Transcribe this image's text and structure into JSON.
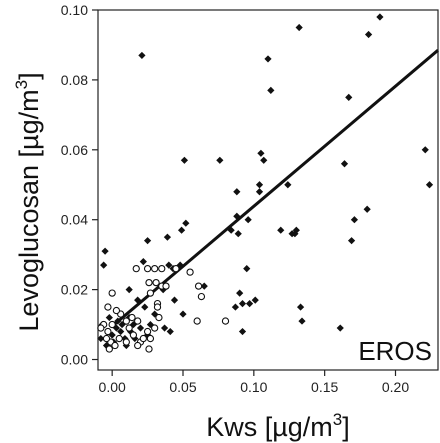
{
  "chart_data": {
    "type": "scatter",
    "title": "",
    "xlabel": "Kws [µg/m³]",
    "ylabel": "Levoglucosan [µg/m³]",
    "xlabel_parts": {
      "base": "Kws [µg/m",
      "sup": "3",
      "end": "]"
    },
    "ylabel_parts": {
      "base": "Levoglucosan [µg/m",
      "sup": "3",
      "end": "]"
    },
    "panel_label": "EROS",
    "xlim": [
      -0.01,
      0.23
    ],
    "ylim": [
      -0.003,
      0.1
    ],
    "x_ticks": [
      0.0,
      0.05,
      0.1,
      0.15,
      0.2
    ],
    "x_tick_labels": [
      "0.00",
      "0.05",
      "0.10",
      "0.15",
      "0.20"
    ],
    "y_ticks": [
      0.0,
      0.02,
      0.04,
      0.06,
      0.08,
      0.1
    ],
    "y_tick_labels": [
      "0.00",
      "0.02",
      "0.04",
      "0.06",
      "0.08",
      "0.10"
    ],
    "grid": false,
    "legend": "none",
    "colors": {
      "filled_marker": "#111111",
      "open_marker": "#111111",
      "fit_line": "#111111"
    },
    "series": [
      {
        "marker": "filled-diamond",
        "points": [
          [
            0.021,
            0.087
          ],
          [
            0.132,
            0.095
          ],
          [
            0.189,
            0.098
          ],
          [
            0.181,
            0.093
          ],
          [
            0.11,
            0.086
          ],
          [
            0.112,
            0.077
          ],
          [
            0.167,
            0.075
          ],
          [
            0.221,
            0.06
          ],
          [
            0.224,
            0.05
          ],
          [
            0.164,
            0.056
          ],
          [
            0.105,
            0.059
          ],
          [
            0.107,
            0.057
          ],
          [
            0.076,
            0.057
          ],
          [
            0.051,
            0.057
          ],
          [
            0.104,
            0.05
          ],
          [
            0.104,
            0.048
          ],
          [
            0.088,
            0.048
          ],
          [
            0.124,
            0.05
          ],
          [
            0.096,
            0.04
          ],
          [
            0.088,
            0.041
          ],
          [
            0.084,
            0.037
          ],
          [
            0.089,
            0.036
          ],
          [
            0.119,
            0.037
          ],
          [
            0.127,
            0.036
          ],
          [
            0.129,
            0.036
          ],
          [
            0.13,
            0.037
          ],
          [
            0.052,
            0.039
          ],
          [
            0.049,
            0.037
          ],
          [
            0.039,
            0.035
          ],
          [
            0.171,
            0.04
          ],
          [
            0.18,
            0.043
          ],
          [
            0.169,
            0.034
          ],
          [
            0.095,
            0.026
          ],
          [
            0.065,
            0.021
          ],
          [
            0.09,
            0.019
          ],
          [
            0.092,
            0.016
          ],
          [
            0.097,
            0.016
          ],
          [
            0.101,
            0.017
          ],
          [
            0.087,
            0.015
          ],
          [
            0.092,
            0.008
          ],
          [
            0.133,
            0.015
          ],
          [
            0.134,
            0.011
          ],
          [
            0.161,
            0.009
          ],
          [
            0.025,
            0.034
          ],
          [
            0.022,
            0.028
          ],
          [
            0.043,
            0.026
          ],
          [
            0.048,
            0.027
          ],
          [
            0.04,
            0.027
          ],
          [
            0.036,
            0.02
          ],
          [
            0.044,
            0.017
          ],
          [
            0.037,
            0.009
          ],
          [
            0.041,
            0.008
          ],
          [
            0.05,
            0.013
          ],
          [
            -0.005,
            0.031
          ],
          [
            -0.006,
            0.027
          ],
          [
            0.018,
            0.017
          ],
          [
            0.012,
            0.02
          ],
          [
            0.023,
            0.015
          ],
          [
            0.018,
            0.011
          ],
          [
            0.03,
            0.013
          ],
          [
            0.0,
            0.007
          ],
          [
            0.004,
            0.011
          ],
          [
            0.006,
            0.008
          ],
          [
            0.009,
            0.006
          ],
          [
            0.013,
            0.008
          ],
          [
            0.016,
            0.006
          ],
          [
            0.02,
            0.009
          ],
          [
            0.001,
            0.005
          ],
          [
            -0.004,
            0.004
          ],
          [
            0.003,
            0.009
          ],
          [
            -0.008,
            0.006
          ],
          [
            -0.007,
            0.01
          ],
          [
            0.01,
            0.004
          ],
          [
            0.027,
            0.01
          ],
          [
            0.025,
            0.007
          ],
          [
            0.033,
            0.012
          ],
          [
            0.012,
            0.012
          ],
          [
            0.007,
            0.01
          ],
          [
            -0.002,
            0.012
          ],
          [
            0.015,
            0.01
          ]
        ]
      },
      {
        "marker": "open-circle",
        "points": [
          [
            -0.003,
            0.015
          ],
          [
            0.0,
            0.019
          ],
          [
            0.017,
            0.026
          ],
          [
            0.025,
            0.026
          ],
          [
            0.03,
            0.026
          ],
          [
            0.035,
            0.026
          ],
          [
            0.045,
            0.026
          ],
          [
            0.055,
            0.025
          ],
          [
            0.026,
            0.022
          ],
          [
            0.031,
            0.022
          ],
          [
            0.035,
            0.021
          ],
          [
            0.038,
            0.021
          ],
          [
            0.027,
            0.019
          ],
          [
            0.032,
            0.016
          ],
          [
            0.061,
            0.021
          ],
          [
            0.063,
            0.018
          ],
          [
            0.06,
            0.011
          ],
          [
            0.08,
            0.011
          ],
          [
            0.032,
            0.015
          ],
          [
            0.033,
            0.012
          ],
          [
            0.03,
            0.009
          ],
          [
            0.025,
            0.008
          ],
          [
            0.027,
            0.006
          ],
          [
            0.018,
            0.011
          ],
          [
            0.014,
            0.012
          ],
          [
            0.01,
            0.011
          ],
          [
            0.015,
            0.007
          ],
          [
            0.02,
            0.005
          ],
          [
            0.026,
            0.003
          ],
          [
            0.01,
            0.005
          ],
          [
            0.005,
            0.006
          ],
          [
            -0.001,
            0.005
          ],
          [
            -0.003,
            0.008
          ],
          [
            -0.006,
            0.01
          ],
          [
            -0.004,
            0.006
          ],
          [
            0.002,
            0.004
          ],
          [
            -0.008,
            0.009
          ],
          [
            0.006,
            0.013
          ],
          [
            0.0,
            0.01
          ],
          [
            0.003,
            0.014
          ],
          [
            0.018,
            0.004
          ],
          [
            0.022,
            0.006
          ],
          [
            0.012,
            0.009
          ],
          [
            -0.002,
            0.003
          ]
        ]
      }
    ],
    "fit_line": {
      "x": [
        0.0,
        0.23
      ],
      "y": [
        0.0095,
        0.0885
      ]
    }
  }
}
